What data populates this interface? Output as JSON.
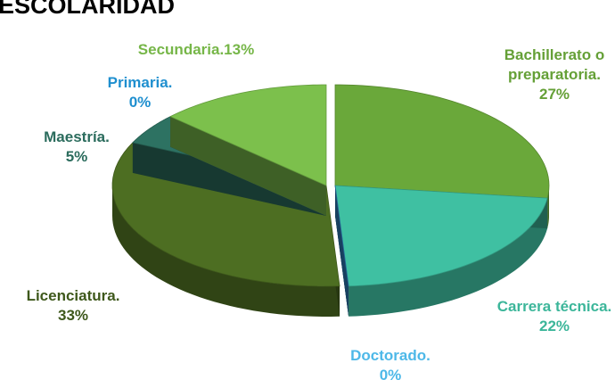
{
  "chart_data": {
    "type": "pie",
    "title": "ESCOLARIDAD",
    "categories": [
      "Bachillerato o preparatoria.",
      "Carrera técnica.",
      "Doctorado.",
      "Licenciatura.",
      "Maestría.",
      "Primaria.",
      "Secundaria."
    ],
    "values": [
      27,
      22,
      0,
      33,
      5,
      0,
      13
    ],
    "value_labels": [
      "27%",
      "22%",
      "0%",
      "33%",
      "5%",
      "0%",
      "13%"
    ],
    "colors": [
      "#6aa83a",
      "#3fc0a2",
      "#2f7fc0",
      "#4d6e22",
      "#2d7262",
      "#1f70c0",
      "#7cc04c"
    ]
  }
}
